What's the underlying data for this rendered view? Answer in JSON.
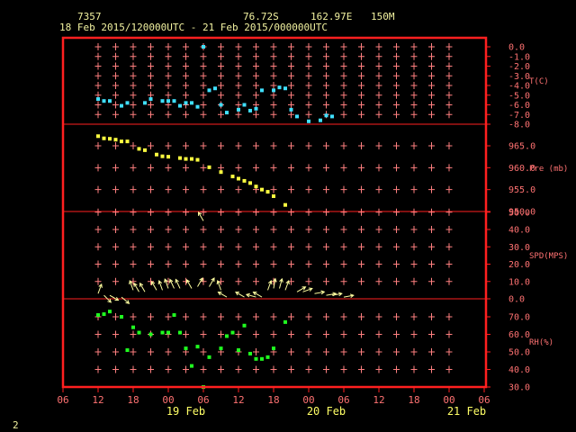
{
  "header": {
    "station_id": "7357",
    "latitude": "76.72S",
    "longitude": "162.97E",
    "elevation": "150M",
    "time_range": "18 Feb 2015/120000UTC - 21 Feb 2015/000000UTC"
  },
  "corner_label": "2",
  "colors": {
    "frame": "#ff2020",
    "grid_cross": "#ff8080",
    "divider": "#ff2020",
    "temperature": "#40e0ff",
    "pressure": "#ffff40",
    "wind": "#ffffa0",
    "humidity": "#20ff20",
    "header_text": "#f2f2a0",
    "date_text": "#ffff66"
  },
  "chart_data": {
    "type": "scatter",
    "x_unit": "hours since 18 Feb 2015 06 UTC",
    "x_range": [
      0,
      66
    ],
    "x_ticks": [
      {
        "x": 0,
        "label": "06"
      },
      {
        "x": 6,
        "label": "12"
      },
      {
        "x": 12,
        "label": "18"
      },
      {
        "x": 18,
        "label": "00"
      },
      {
        "x": 24,
        "label": "06"
      },
      {
        "x": 30,
        "label": "12"
      },
      {
        "x": 36,
        "label": "18"
      },
      {
        "x": 42,
        "label": "00"
      },
      {
        "x": 48,
        "label": "06"
      },
      {
        "x": 54,
        "label": "12"
      },
      {
        "x": 60,
        "label": "18"
      },
      {
        "x": 66,
        "label": "00"
      },
      {
        "x": 72,
        "label": "06"
      }
    ],
    "date_labels": [
      {
        "x": 21,
        "label": "19 Feb"
      },
      {
        "x": 45,
        "label": "20 Feb"
      },
      {
        "x": 69,
        "label": "21 Feb"
      }
    ],
    "grid_columns_x": [
      6,
      9,
      12,
      15,
      18,
      21,
      24,
      27,
      30,
      33,
      36,
      39,
      42,
      45,
      48,
      51,
      54,
      57,
      60,
      63,
      66
    ],
    "panels": [
      {
        "id": "temperature",
        "label": "T(C)",
        "ylim": [
          -8.0,
          0.0
        ],
        "yticks": [
          "0.0",
          "-1.0",
          "-2.0",
          "-3.0",
          "-4.0",
          "-5.0",
          "-6.0",
          "-7.0",
          "-8.0"
        ],
        "grid_rows": 8,
        "color": "#40e0ff",
        "points": [
          [
            6,
            -5.4
          ],
          [
            7,
            -5.6
          ],
          [
            8,
            -5.6
          ],
          [
            10,
            -6.1
          ],
          [
            11,
            -5.8
          ],
          [
            14,
            -5.8
          ],
          [
            15,
            -5.4
          ],
          [
            17,
            -5.6
          ],
          [
            18,
            -5.6
          ],
          [
            19,
            -5.6
          ],
          [
            20,
            -6.1
          ],
          [
            21,
            -5.8
          ],
          [
            22,
            -5.8
          ],
          [
            23,
            -6.2
          ],
          [
            25,
            -4.5
          ],
          [
            26,
            -4.3
          ],
          [
            27,
            -6.0
          ],
          [
            28,
            -6.8
          ],
          [
            30,
            -6.5
          ],
          [
            31,
            -6.0
          ],
          [
            32,
            -6.6
          ],
          [
            33,
            -6.4
          ],
          [
            34,
            -4.5
          ],
          [
            36,
            -4.5
          ],
          [
            37,
            -4.2
          ],
          [
            38,
            -4.3
          ],
          [
            39,
            -6.5
          ],
          [
            40,
            -7.2
          ],
          [
            42,
            -7.7
          ],
          [
            44,
            -7.6
          ],
          [
            45,
            -7.1
          ],
          [
            46,
            -7.2
          ],
          [
            24,
            0.0
          ]
        ]
      },
      {
        "id": "pressure",
        "label": "Pre (mb)",
        "ylim": [
          950,
          970
        ],
        "yticks": [
          "965.0",
          "960.0",
          "955.0",
          "950.0"
        ],
        "ytick_values": [
          965,
          960,
          955,
          950
        ],
        "grid_rows": 4,
        "color": "#ffff40",
        "points": [
          [
            6,
            967.2
          ],
          [
            7,
            966.7
          ],
          [
            8,
            966.6
          ],
          [
            9,
            966.4
          ],
          [
            10,
            966.0
          ],
          [
            11,
            966.0
          ],
          [
            13,
            964.3
          ],
          [
            14,
            964.0
          ],
          [
            16,
            963.0
          ],
          [
            17,
            962.6
          ],
          [
            18,
            962.5
          ],
          [
            20,
            962.2
          ],
          [
            21,
            962.0
          ],
          [
            22,
            962.0
          ],
          [
            23,
            961.8
          ],
          [
            25,
            960.1
          ],
          [
            27,
            959.0
          ],
          [
            29,
            958.0
          ],
          [
            30,
            957.5
          ],
          [
            31,
            957.0
          ],
          [
            32,
            956.5
          ],
          [
            33,
            955.7
          ],
          [
            34,
            955.0
          ],
          [
            35,
            954.5
          ],
          [
            36,
            953.5
          ],
          [
            38,
            951.5
          ]
        ]
      },
      {
        "id": "wind",
        "label": "SPD(MPS)",
        "ylim": [
          0,
          50
        ],
        "yticks": [
          "50.0",
          "40.0",
          "30.0",
          "20.0",
          "10.0",
          "0.0"
        ],
        "grid_rows": 5,
        "color": "#ffffa0",
        "arrows": [
          [
            6,
            3,
            20
          ],
          [
            7,
            2,
            135
          ],
          [
            8,
            2,
            120
          ],
          [
            10,
            1,
            130
          ],
          [
            12,
            5,
            340
          ],
          [
            13,
            4,
            330
          ],
          [
            14,
            4,
            330
          ],
          [
            16,
            5,
            330
          ],
          [
            17,
            5,
            340
          ],
          [
            18,
            6,
            340
          ],
          [
            19,
            6,
            335
          ],
          [
            20,
            6,
            335
          ],
          [
            22,
            6,
            330
          ],
          [
            23,
            7,
            30
          ],
          [
            25,
            7,
            30
          ],
          [
            27,
            5,
            340
          ],
          [
            28,
            1,
            300
          ],
          [
            31,
            1,
            300
          ],
          [
            33,
            1,
            285
          ],
          [
            34,
            1,
            300
          ],
          [
            35,
            5,
            20
          ],
          [
            36,
            6,
            10
          ],
          [
            37,
            6,
            15
          ],
          [
            38,
            5,
            20
          ],
          [
            40,
            4,
            60
          ],
          [
            41,
            4,
            70
          ],
          [
            43,
            3,
            80
          ],
          [
            45,
            2,
            80
          ],
          [
            46,
            2,
            80
          ],
          [
            48,
            1,
            80
          ],
          [
            24,
            45,
            330
          ]
        ]
      },
      {
        "id": "humidity",
        "label": "RH(%)",
        "ylim": [
          30,
          80
        ],
        "yticks": [
          "70.0",
          "60.0",
          "50.0",
          "40.0",
          "30.0"
        ],
        "ytick_values": [
          70,
          60,
          50,
          40,
          30
        ],
        "grid_rows": 5,
        "color": "#20ff20",
        "points": [
          [
            6,
            71
          ],
          [
            7,
            71.5
          ],
          [
            8,
            73
          ],
          [
            10,
            70
          ],
          [
            11,
            51
          ],
          [
            12,
            64
          ],
          [
            13,
            61
          ],
          [
            15,
            60
          ],
          [
            17,
            61
          ],
          [
            18,
            61
          ],
          [
            19,
            71
          ],
          [
            20,
            61
          ],
          [
            21,
            52
          ],
          [
            22,
            42
          ],
          [
            23,
            53
          ],
          [
            25,
            47
          ],
          [
            27,
            52
          ],
          [
            28,
            59
          ],
          [
            29,
            61
          ],
          [
            30,
            51
          ],
          [
            31,
            65
          ],
          [
            32,
            49
          ],
          [
            33,
            46
          ],
          [
            34,
            46
          ],
          [
            35,
            47
          ],
          [
            36,
            52
          ],
          [
            38,
            67
          ],
          [
            24,
            30
          ]
        ]
      }
    ]
  }
}
